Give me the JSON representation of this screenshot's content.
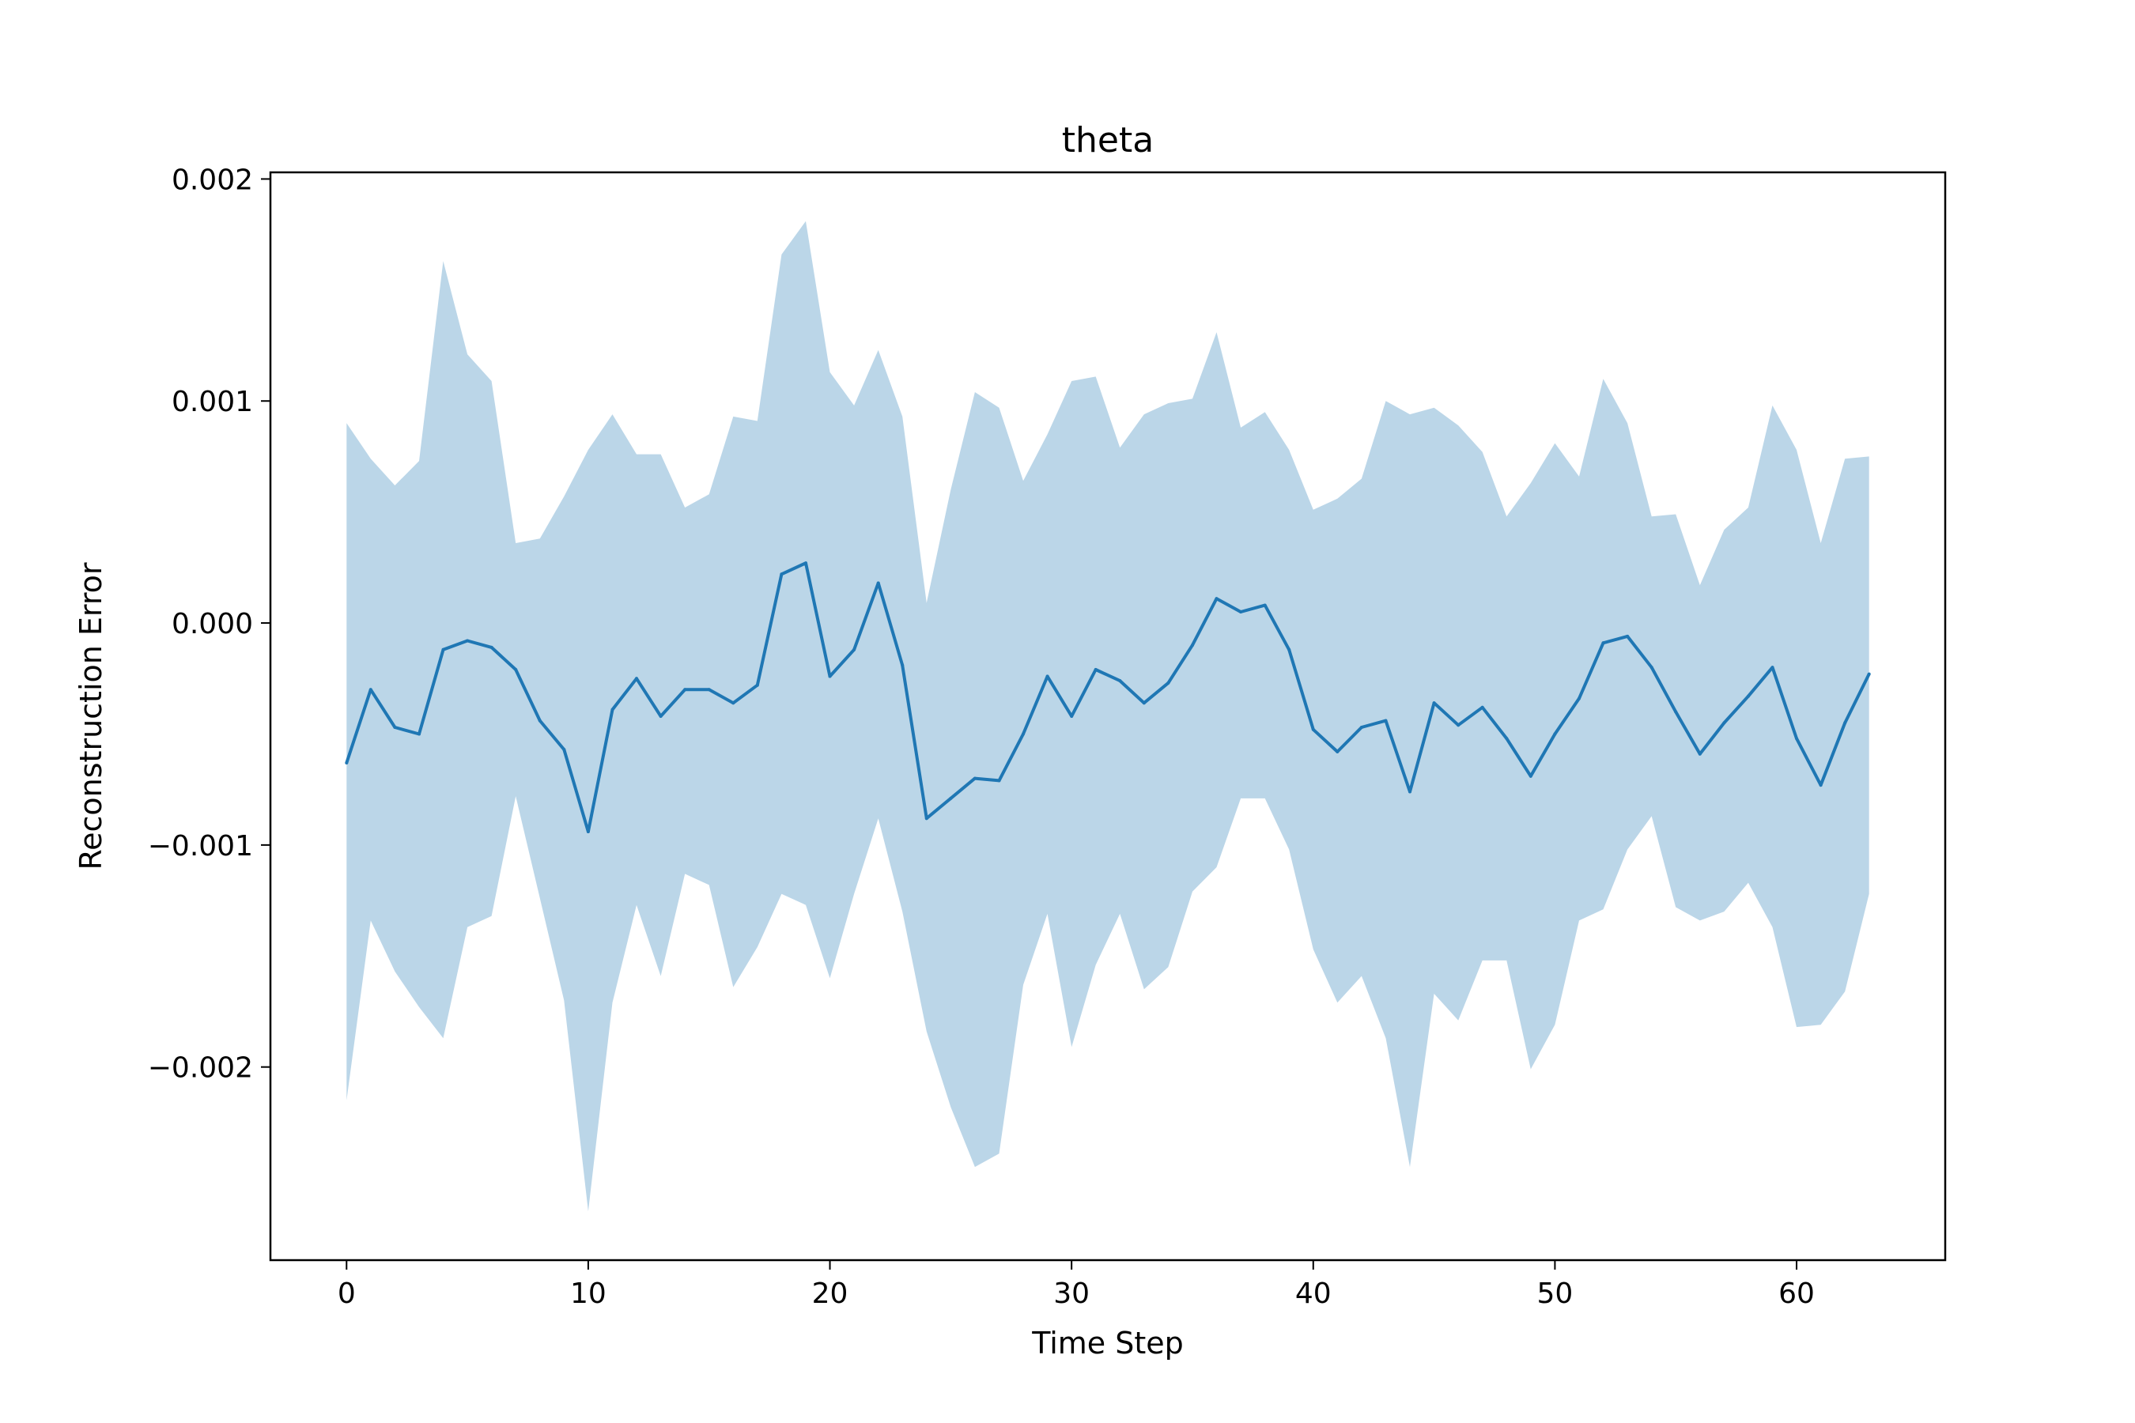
{
  "chart_data": {
    "type": "line",
    "title": "theta",
    "xlabel": "Time Step",
    "ylabel": "Reconstruction Error",
    "xlim": [
      -3.15,
      66.15
    ],
    "ylim": [
      -0.00287,
      0.00203
    ],
    "xticks": [
      0,
      10,
      20,
      30,
      40,
      50,
      60
    ],
    "xtick_labels": [
      "0",
      "10",
      "20",
      "30",
      "40",
      "50",
      "60"
    ],
    "yticks": [
      0.002,
      0.001,
      0.0,
      -0.001,
      -0.002
    ],
    "ytick_labels": [
      "0.002",
      "0.001",
      "0.000",
      "−0.001",
      "−0.002"
    ],
    "grid": false,
    "colors": {
      "line": "#1f77b4",
      "band": "#1f77b4"
    },
    "series": [
      {
        "type": "line",
        "x": [
          0,
          1,
          2,
          3,
          4,
          5,
          6,
          7,
          8,
          9,
          10,
          11,
          12,
          13,
          14,
          15,
          16,
          17,
          18,
          19,
          20,
          21,
          22,
          23,
          24,
          25,
          26,
          27,
          28,
          29,
          30,
          31,
          32,
          33,
          34,
          35,
          36,
          37,
          38,
          39,
          40,
          41,
          42,
          43,
          44,
          45,
          46,
          47,
          48,
          49,
          50,
          51,
          52,
          53,
          54,
          55,
          56,
          57,
          58,
          59,
          60,
          61,
          62,
          63
        ],
        "y": [
          -0.00063,
          -0.0003,
          -0.00047,
          -0.0005,
          -0.00012,
          -8e-05,
          -0.00011,
          -0.00021,
          -0.00044,
          -0.00057,
          -0.00094,
          -0.00039,
          -0.00025,
          -0.00042,
          -0.0003,
          -0.0003,
          -0.00036,
          -0.00028,
          0.00022,
          0.00027,
          -0.00024,
          -0.00012,
          0.00018,
          -0.00019,
          -0.00088,
          -0.00079,
          -0.0007,
          -0.00071,
          -0.0005,
          -0.00024,
          -0.00042,
          -0.00021,
          -0.00026,
          -0.00036,
          -0.00027,
          -0.0001,
          0.00011,
          5e-05,
          8e-05,
          -0.00012,
          -0.00048,
          -0.00058,
          -0.00047,
          -0.00044,
          -0.00076,
          -0.00036,
          -0.00046,
          -0.00038,
          -0.00052,
          -0.00069,
          -0.0005,
          -0.00034,
          -9e-05,
          -6e-05,
          -0.0002,
          -0.0004,
          -0.00059,
          -0.00045,
          -0.00033,
          -0.0002,
          -0.00052,
          -0.00073,
          -0.00045,
          -0.00023
        ]
      },
      {
        "type": "band",
        "x": [
          0,
          1,
          2,
          3,
          4,
          5,
          6,
          7,
          8,
          9,
          10,
          11,
          12,
          13,
          14,
          15,
          16,
          17,
          18,
          19,
          20,
          21,
          22,
          23,
          24,
          25,
          26,
          27,
          28,
          29,
          30,
          31,
          32,
          33,
          34,
          35,
          36,
          37,
          38,
          39,
          40,
          41,
          42,
          43,
          44,
          45,
          46,
          47,
          48,
          49,
          50,
          51,
          52,
          53,
          54,
          55,
          56,
          57,
          58,
          59,
          60,
          61,
          62,
          63
        ],
        "upper": [
          0.0009,
          0.00074,
          0.00062,
          0.00073,
          0.00163,
          0.00121,
          0.00109,
          0.00036,
          0.00038,
          0.00057,
          0.00078,
          0.00094,
          0.00076,
          0.00076,
          0.00052,
          0.00058,
          0.00093,
          0.00091,
          0.00166,
          0.00181,
          0.00113,
          0.00098,
          0.00123,
          0.00093,
          9e-05,
          0.0006,
          0.00104,
          0.00097,
          0.00064,
          0.00085,
          0.00109,
          0.00111,
          0.00079,
          0.00094,
          0.00099,
          0.00101,
          0.00131,
          0.00088,
          0.00095,
          0.00078,
          0.00051,
          0.00056,
          0.00065,
          0.001,
          0.00094,
          0.00097,
          0.00089,
          0.00077,
          0.00048,
          0.00063,
          0.00081,
          0.00066,
          0.0011,
          0.0009,
          0.00048,
          0.00049,
          0.00017,
          0.00042,
          0.00052,
          0.00098,
          0.00078,
          0.00036,
          0.00074,
          0.00075
        ],
        "lower": [
          -0.00215,
          -0.00134,
          -0.00157,
          -0.00173,
          -0.00187,
          -0.00137,
          -0.00132,
          -0.00078,
          -0.00124,
          -0.0017,
          -0.00265,
          -0.00171,
          -0.00127,
          -0.00159,
          -0.00113,
          -0.00118,
          -0.00164,
          -0.00146,
          -0.00122,
          -0.00127,
          -0.0016,
          -0.00122,
          -0.00088,
          -0.0013,
          -0.00184,
          -0.00218,
          -0.00245,
          -0.00239,
          -0.00163,
          -0.00131,
          -0.00191,
          -0.00154,
          -0.00131,
          -0.00165,
          -0.00155,
          -0.00121,
          -0.0011,
          -0.00079,
          -0.00079,
          -0.00102,
          -0.00147,
          -0.00171,
          -0.00159,
          -0.00187,
          -0.00245,
          -0.00167,
          -0.00179,
          -0.00152,
          -0.00152,
          -0.00201,
          -0.00181,
          -0.00134,
          -0.00129,
          -0.00102,
          -0.00087,
          -0.00128,
          -0.00134,
          -0.0013,
          -0.00117,
          -0.00137,
          -0.00182,
          -0.00181,
          -0.00166,
          -0.00122
        ]
      }
    ]
  }
}
